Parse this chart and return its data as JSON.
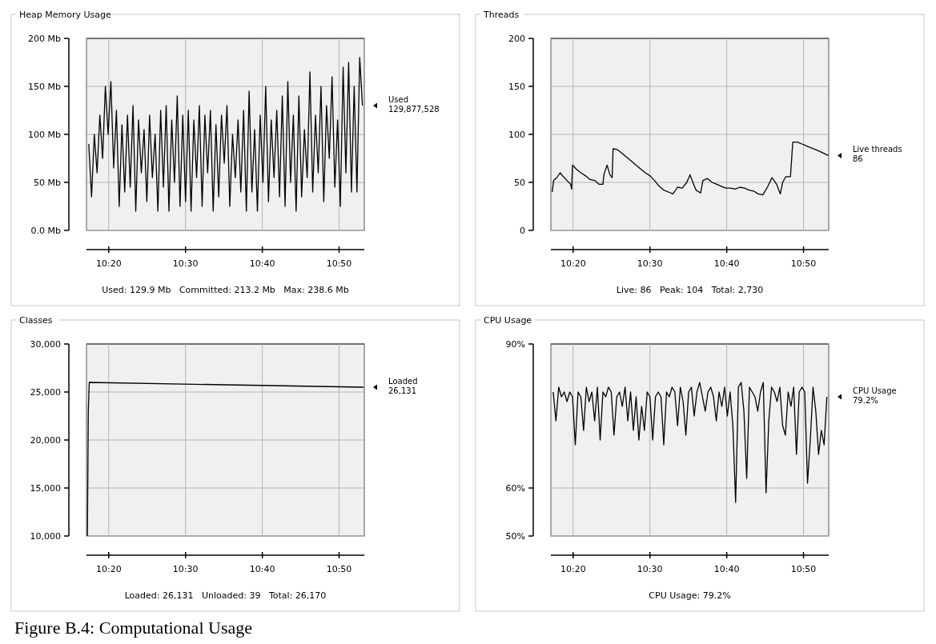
{
  "chart_data": [
    {
      "type": "line",
      "title": "Heap Memory Usage",
      "x": [
        10.29,
        10.296,
        10.302,
        10.308,
        10.314,
        10.32,
        10.326,
        10.332,
        10.338,
        10.344,
        10.35,
        10.356,
        10.362,
        10.368,
        10.374,
        10.38,
        10.386,
        10.392,
        10.398,
        10.404,
        10.41,
        10.416,
        10.422,
        10.428,
        10.434,
        10.44,
        10.446,
        10.452,
        10.458,
        10.464,
        10.47,
        10.476,
        10.482,
        10.488,
        10.494,
        10.5,
        10.506,
        10.512,
        10.518,
        10.524,
        10.53,
        10.536,
        10.542,
        10.548,
        10.554,
        10.56,
        10.566,
        10.572,
        10.578,
        10.584,
        10.59,
        10.596,
        10.602,
        10.608,
        10.614,
        10.62,
        10.626,
        10.632,
        10.638,
        10.644,
        10.65,
        10.656,
        10.662,
        10.668,
        10.674,
        10.68,
        10.686,
        10.692,
        10.698,
        10.704,
        10.71,
        10.716,
        10.722,
        10.728,
        10.734,
        10.74,
        10.746,
        10.752,
        10.758,
        10.764,
        10.77,
        10.776,
        10.782,
        10.788,
        10.794,
        10.8,
        10.806,
        10.812,
        10.818,
        10.824,
        10.83,
        10.836,
        10.842,
        10.848,
        10.854,
        10.86,
        10.866,
        10.872,
        10.878,
        10.884
      ],
      "series": [
        {
          "name": "Used",
          "color": "#000000",
          "values": [
            90,
            35,
            100,
            60,
            120,
            75,
            150,
            100,
            155,
            65,
            125,
            25,
            110,
            40,
            120,
            45,
            130,
            20,
            115,
            60,
            105,
            30,
            120,
            55,
            100,
            20,
            125,
            45,
            130,
            20,
            115,
            50,
            140,
            25,
            120,
            30,
            125,
            20,
            115,
            55,
            130,
            25,
            120,
            60,
            125,
            20,
            110,
            35,
            120,
            70,
            130,
            25,
            100,
            55,
            115,
            40,
            125,
            20,
            145,
            40,
            105,
            20,
            120,
            50,
            150,
            30,
            115,
            55,
            125,
            35,
            140,
            25,
            155,
            50,
            120,
            20,
            140,
            35,
            105,
            55,
            165,
            40,
            120,
            60,
            150,
            30,
            130,
            75,
            160,
            45,
            115,
            25,
            170,
            60,
            175,
            40,
            150,
            40,
            180,
            130
          ]
        }
      ],
      "xlim": [
        10.285,
        10.888
      ],
      "xticks": [
        {
          "value": 10.3333,
          "label": "10:20"
        },
        {
          "value": 10.5,
          "label": "10:30"
        },
        {
          "value": 10.6667,
          "label": "10:40"
        },
        {
          "value": 10.8333,
          "label": "10:50"
        }
      ],
      "ylim": [
        0,
        200
      ],
      "yticks": [
        {
          "value": 0,
          "label": "0.0 Mb"
        },
        {
          "value": 50,
          "label": "50 Mb"
        },
        {
          "value": 100,
          "label": "100 Mb"
        },
        {
          "value": 150,
          "label": "150 Mb"
        },
        {
          "value": 200,
          "label": "200 Mb"
        }
      ],
      "grid": true,
      "annotations": [
        "Used: 129.9 Mb   Committed: 213.2 Mb   Max: 238.6 Mb",
        "129,877,528"
      ]
    },
    {
      "type": "line",
      "title": "Threads",
      "series": [
        {
          "name": "Live threads",
          "color": "#000000",
          "x": [
            10.288,
            10.291,
            10.298,
            10.305,
            10.312,
            10.32,
            10.328,
            10.33,
            10.332,
            10.34,
            10.35,
            10.36,
            10.37,
            10.38,
            10.39,
            10.398,
            10.4,
            10.407,
            10.413,
            10.418,
            10.42,
            10.43,
            10.44,
            10.45,
            10.46,
            10.47,
            10.48,
            10.49,
            10.5,
            10.51,
            10.52,
            10.53,
            10.54,
            10.55,
            10.56,
            10.57,
            10.58,
            10.587,
            10.595,
            10.6,
            10.61,
            10.615,
            10.625,
            10.635,
            10.645,
            10.655,
            10.665,
            10.675,
            10.685,
            10.695,
            10.705,
            10.715,
            10.725,
            10.735,
            10.745,
            10.755,
            10.765,
            10.775,
            10.783,
            10.788,
            10.795,
            10.805,
            10.81,
            10.82,
            10.83,
            10.84,
            10.85,
            10.86,
            10.87,
            10.887
          ],
          "values": [
            40,
            52,
            55,
            60,
            56,
            52,
            48,
            43,
            68,
            64,
            60,
            57,
            53,
            52,
            48,
            48,
            58,
            68,
            58,
            55,
            85,
            84,
            80,
            76,
            72,
            68,
            64,
            60,
            57,
            52,
            46,
            42,
            40,
            38,
            45,
            44,
            50,
            58,
            48,
            42,
            39,
            52,
            54,
            50,
            48,
            46,
            44,
            44,
            43,
            45,
            44,
            42,
            41,
            38,
            37,
            45,
            55,
            48,
            38,
            50,
            56,
            56,
            92,
            92,
            90,
            88,
            86,
            84,
            82,
            78
          ]
        }
      ],
      "xlim": [
        10.285,
        10.888
      ],
      "xticks": [
        {
          "value": 10.3333,
          "label": "10:20"
        },
        {
          "value": 10.5,
          "label": "10:30"
        },
        {
          "value": 10.6667,
          "label": "10:40"
        },
        {
          "value": 10.8333,
          "label": "10:50"
        }
      ],
      "ylim": [
        0,
        200
      ],
      "yticks": [
        0,
        50,
        100,
        150,
        200
      ],
      "grid": true,
      "annotations": [
        "Live: 86   Peak: 104   Total: 2,730",
        "86"
      ]
    },
    {
      "type": "line",
      "title": "Classes",
      "series": [
        {
          "name": "Loaded",
          "color": "#000000",
          "x": [
            10.287,
            10.289,
            10.291,
            10.886
          ],
          "values": [
            10000,
            23000,
            26000,
            25500
          ]
        }
      ],
      "xlim": [
        10.285,
        10.888
      ],
      "xticks": [
        {
          "value": 10.3333,
          "label": "10:20"
        },
        {
          "value": 10.5,
          "label": "10:30"
        },
        {
          "value": 10.6667,
          "label": "10:40"
        },
        {
          "value": 10.8333,
          "label": "10:50"
        }
      ],
      "ylim": [
        10000,
        30000
      ],
      "yticks": [
        {
          "value": 10000,
          "label": "10,000"
        },
        {
          "value": 15000,
          "label": "15,000"
        },
        {
          "value": 20000,
          "label": "20,000"
        },
        {
          "value": 25000,
          "label": "25,000"
        },
        {
          "value": 30000,
          "label": "30,000"
        }
      ],
      "grid": true,
      "annotations": [
        "Loaded: 26,131   Unloaded: 39   Total: 26,170",
        "26,131",
        "Figure B.4: Computational Usage"
      ]
    },
    {
      "type": "line",
      "title": "CPU Usage",
      "x": [
        10.29,
        10.296,
        10.302,
        10.308,
        10.314,
        10.32,
        10.326,
        10.332,
        10.338,
        10.344,
        10.35,
        10.356,
        10.362,
        10.368,
        10.374,
        10.38,
        10.386,
        10.392,
        10.398,
        10.404,
        10.41,
        10.416,
        10.422,
        10.428,
        10.434,
        10.44,
        10.446,
        10.452,
        10.458,
        10.464,
        10.47,
        10.476,
        10.482,
        10.488,
        10.494,
        10.5,
        10.506,
        10.512,
        10.518,
        10.524,
        10.53,
        10.536,
        10.542,
        10.548,
        10.554,
        10.56,
        10.566,
        10.572,
        10.578,
        10.584,
        10.59,
        10.596,
        10.602,
        10.608,
        10.614,
        10.62,
        10.626,
        10.632,
        10.638,
        10.644,
        10.65,
        10.656,
        10.662,
        10.668,
        10.674,
        10.68,
        10.686,
        10.692,
        10.698,
        10.704,
        10.71,
        10.716,
        10.722,
        10.728,
        10.734,
        10.74,
        10.746,
        10.752,
        10.758,
        10.764,
        10.77,
        10.776,
        10.782,
        10.788,
        10.794,
        10.8,
        10.806,
        10.812,
        10.818,
        10.824,
        10.83,
        10.836,
        10.842,
        10.848,
        10.854,
        10.86,
        10.866,
        10.872,
        10.878,
        10.884
      ],
      "series": [
        {
          "name": "CPU Usage",
          "color": "#000000",
          "values": [
            80,
            74,
            81,
            79,
            80,
            78,
            80,
            79,
            69,
            80,
            79,
            72,
            81,
            78,
            80,
            74,
            81,
            70,
            80,
            79,
            81,
            80,
            71,
            79,
            80,
            77,
            81,
            74,
            80,
            72,
            79,
            70,
            77,
            72,
            80,
            79,
            70,
            79,
            80,
            79,
            69,
            80,
            79,
            81,
            80,
            73,
            81,
            78,
            71,
            80,
            81,
            75,
            80,
            82,
            79,
            76,
            80,
            81,
            79,
            74,
            80,
            77,
            81,
            75,
            80,
            73,
            57,
            81,
            82,
            76,
            62,
            81,
            80,
            79,
            76,
            80,
            82,
            59,
            74,
            81,
            80,
            78,
            81,
            73,
            71,
            80,
            77,
            81,
            67,
            80,
            81,
            80,
            61,
            70,
            81,
            76,
            67,
            72,
            69,
            79
          ]
        }
      ],
      "xlim": [
        10.285,
        10.888
      ],
      "xticks": [
        {
          "value": 10.3333,
          "label": "10:20"
        },
        {
          "value": 10.5,
          "label": "10:30"
        },
        {
          "value": 10.6667,
          "label": "10:40"
        },
        {
          "value": 10.8333,
          "label": "10:50"
        }
      ],
      "ylim": [
        50,
        90
      ],
      "yticks": [
        {
          "value": 50,
          "label": "50%"
        },
        {
          "value": 60,
          "label": "60%"
        },
        {
          "value": 90,
          "label": "90%"
        }
      ],
      "grid": true,
      "annotations": [
        "CPU Usage: 79.2%",
        "79.2%"
      ]
    }
  ]
}
